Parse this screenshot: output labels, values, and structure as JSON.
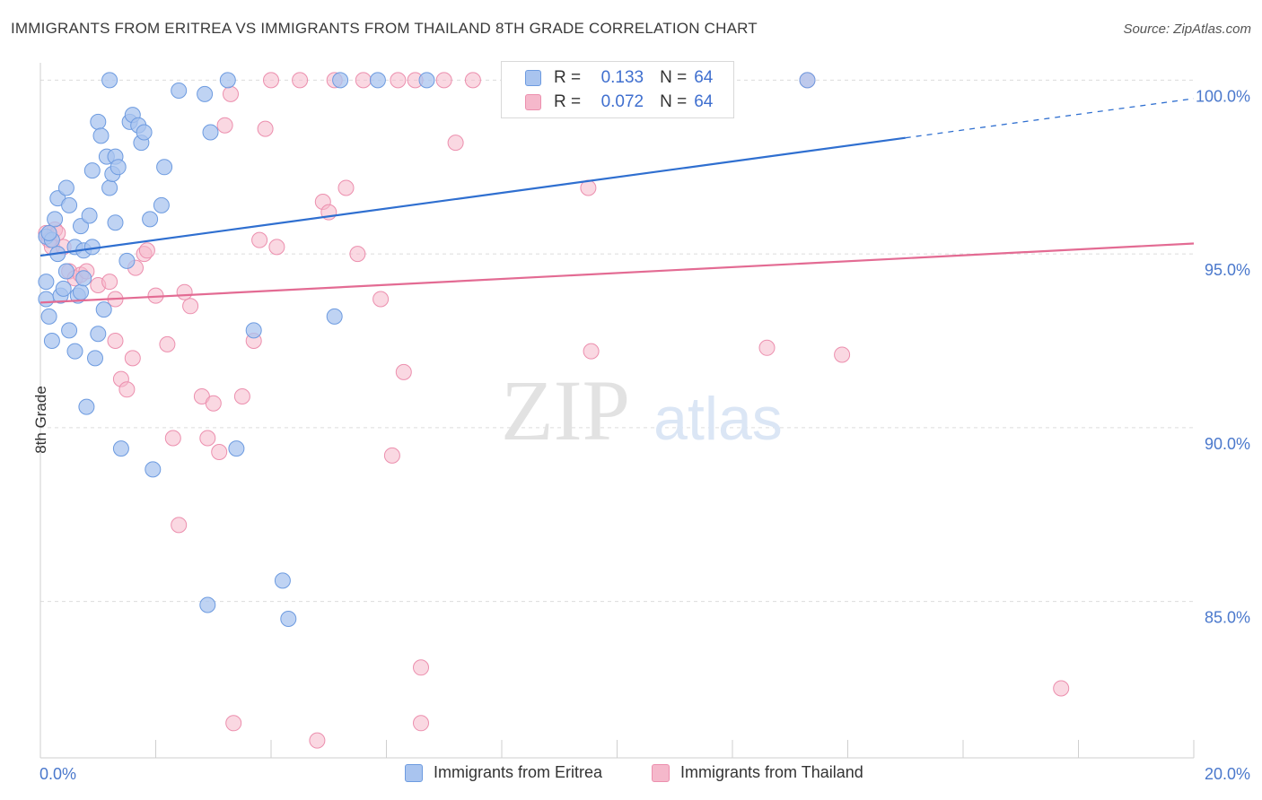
{
  "title": "IMMIGRANTS FROM ERITREA VS IMMIGRANTS FROM THAILAND 8TH GRADE CORRELATION CHART",
  "source": "Source: ZipAtlas.com",
  "watermark": {
    "zip": "ZIP",
    "atlas": "atlas"
  },
  "legend": {
    "rows": [
      {
        "r_label": "R =",
        "r_value": "0.133",
        "n_label": "N =",
        "n_value": "64"
      },
      {
        "r_label": "R =",
        "r_value": "0.072",
        "n_label": "N =",
        "n_value": "64"
      }
    ]
  },
  "bottom_legend": [
    "Immigrants from Eritrea",
    "Immigrants from Thailand"
  ],
  "colors": {
    "eritrea_fill": "#a9c4ef",
    "eritrea_stroke": "#6d9be0",
    "eritrea_line": "#2f6fd0",
    "thailand_fill": "#f5b8cb",
    "thailand_stroke": "#ec8fae",
    "thailand_line": "#e36b93",
    "tick_label": "#4a78cc",
    "grid": "#dcdcdc"
  },
  "chart_data": {
    "type": "scatter",
    "title": "IMMIGRANTS FROM ERITREA VS IMMIGRANTS FROM THAILAND 8TH GRADE CORRELATION CHART",
    "xlabel": "",
    "ylabel": "8th Grade",
    "xlim": [
      0,
      20
    ],
    "ylim": [
      80.5,
      100.5
    ],
    "x_tick_labels": [
      "0.0%",
      "20.0%"
    ],
    "y_ticks": [
      85,
      90,
      95,
      100
    ],
    "y_tick_labels": [
      "85.0%",
      "90.0%",
      "95.0%",
      "100.0%"
    ],
    "grid": true,
    "legend_position": "top-center",
    "series": [
      {
        "name": "Immigrants from Eritrea",
        "color": "#6d9be0",
        "points": [
          [
            0.1,
            94.2
          ],
          [
            0.1,
            93.7
          ],
          [
            0.15,
            93.2
          ],
          [
            0.1,
            95.5
          ],
          [
            0.2,
            95.4
          ],
          [
            0.25,
            96.0
          ],
          [
            0.3,
            95.0
          ],
          [
            0.3,
            96.6
          ],
          [
            0.35,
            93.8
          ],
          [
            0.4,
            94.0
          ],
          [
            0.45,
            94.5
          ],
          [
            0.45,
            96.9
          ],
          [
            0.5,
            96.4
          ],
          [
            0.5,
            92.8
          ],
          [
            0.2,
            92.5
          ],
          [
            0.6,
            95.2
          ],
          [
            0.6,
            92.2
          ],
          [
            0.65,
            93.8
          ],
          [
            0.7,
            93.9
          ],
          [
            0.7,
            95.8
          ],
          [
            0.75,
            94.3
          ],
          [
            0.75,
            95.1
          ],
          [
            0.8,
            90.6
          ],
          [
            0.85,
            96.1
          ],
          [
            0.9,
            95.2
          ],
          [
            0.9,
            97.4
          ],
          [
            0.95,
            92.0
          ],
          [
            1.0,
            98.8
          ],
          [
            1.0,
            92.7
          ],
          [
            1.05,
            98.4
          ],
          [
            1.1,
            93.4
          ],
          [
            1.15,
            97.8
          ],
          [
            1.2,
            96.9
          ],
          [
            1.25,
            97.3
          ],
          [
            1.3,
            95.9
          ],
          [
            1.3,
            97.8
          ],
          [
            1.35,
            97.5
          ],
          [
            1.4,
            89.4
          ],
          [
            1.5,
            94.8
          ],
          [
            1.55,
            98.8
          ],
          [
            1.6,
            99.0
          ],
          [
            1.7,
            98.7
          ],
          [
            1.75,
            98.2
          ],
          [
            1.8,
            98.5
          ],
          [
            1.9,
            96.0
          ],
          [
            1.95,
            88.8
          ],
          [
            2.1,
            96.4
          ],
          [
            2.15,
            97.5
          ],
          [
            1.2,
            100.0
          ],
          [
            2.4,
            99.7
          ],
          [
            2.85,
            99.6
          ],
          [
            2.9,
            84.9
          ],
          [
            2.95,
            98.5
          ],
          [
            3.25,
            100.0
          ],
          [
            3.4,
            89.4
          ],
          [
            3.7,
            92.8
          ],
          [
            4.2,
            85.6
          ],
          [
            4.3,
            84.5
          ],
          [
            5.1,
            93.2
          ],
          [
            5.2,
            100.0
          ],
          [
            5.85,
            100.0
          ],
          [
            6.7,
            100.0
          ],
          [
            13.3,
            100.0
          ],
          [
            0.15,
            95.6
          ]
        ]
      },
      {
        "name": "Immigrants from Thailand",
        "color": "#ec8fae",
        "points": [
          [
            0.1,
            95.6
          ],
          [
            0.15,
            95.4
          ],
          [
            0.2,
            95.2
          ],
          [
            0.25,
            95.7
          ],
          [
            0.3,
            95.6
          ],
          [
            0.4,
            95.2
          ],
          [
            0.5,
            94.5
          ],
          [
            0.6,
            94.3
          ],
          [
            0.7,
            94.4
          ],
          [
            0.8,
            94.5
          ],
          [
            1.0,
            94.1
          ],
          [
            1.2,
            94.2
          ],
          [
            1.3,
            92.5
          ],
          [
            1.3,
            93.7
          ],
          [
            1.4,
            91.4
          ],
          [
            1.5,
            91.1
          ],
          [
            1.6,
            92.0
          ],
          [
            1.65,
            94.6
          ],
          [
            1.8,
            95.0
          ],
          [
            1.85,
            95.1
          ],
          [
            2.0,
            93.8
          ],
          [
            2.2,
            92.4
          ],
          [
            2.3,
            89.7
          ],
          [
            2.4,
            87.2
          ],
          [
            2.5,
            93.9
          ],
          [
            2.6,
            93.5
          ],
          [
            2.8,
            90.9
          ],
          [
            2.9,
            89.7
          ],
          [
            3.0,
            90.7
          ],
          [
            3.1,
            89.3
          ],
          [
            3.2,
            98.7
          ],
          [
            3.3,
            99.6
          ],
          [
            3.35,
            81.5
          ],
          [
            3.5,
            90.9
          ],
          [
            3.7,
            92.5
          ],
          [
            3.8,
            95.4
          ],
          [
            3.9,
            98.6
          ],
          [
            4.0,
            100.0
          ],
          [
            4.1,
            95.2
          ],
          [
            4.5,
            100.0
          ],
          [
            4.8,
            81.0
          ],
          [
            4.9,
            96.5
          ],
          [
            5.0,
            96.2
          ],
          [
            5.1,
            100.0
          ],
          [
            5.3,
            96.9
          ],
          [
            5.5,
            95.0
          ],
          [
            5.6,
            100.0
          ],
          [
            5.9,
            93.7
          ],
          [
            6.1,
            89.2
          ],
          [
            6.2,
            100.0
          ],
          [
            6.3,
            91.6
          ],
          [
            6.5,
            100.0
          ],
          [
            6.6,
            83.1
          ],
          [
            6.6,
            81.5
          ],
          [
            7.0,
            100.0
          ],
          [
            7.2,
            98.2
          ],
          [
            7.5,
            100.0
          ],
          [
            9.5,
            96.9
          ],
          [
            9.55,
            92.2
          ],
          [
            11.5,
            100.0
          ],
          [
            12.6,
            92.3
          ],
          [
            13.3,
            100.0
          ],
          [
            13.9,
            92.1
          ],
          [
            17.7,
            82.5
          ]
        ]
      }
    ],
    "trend_lines": [
      {
        "series": "Immigrants from Eritrea",
        "x": [
          0,
          20
        ],
        "y": [
          94.95,
          99.47
        ],
        "solid_until_x": 15.0
      },
      {
        "series": "Immigrants from Thailand",
        "x": [
          0,
          20
        ],
        "y": [
          93.6,
          95.3
        ]
      }
    ]
  }
}
